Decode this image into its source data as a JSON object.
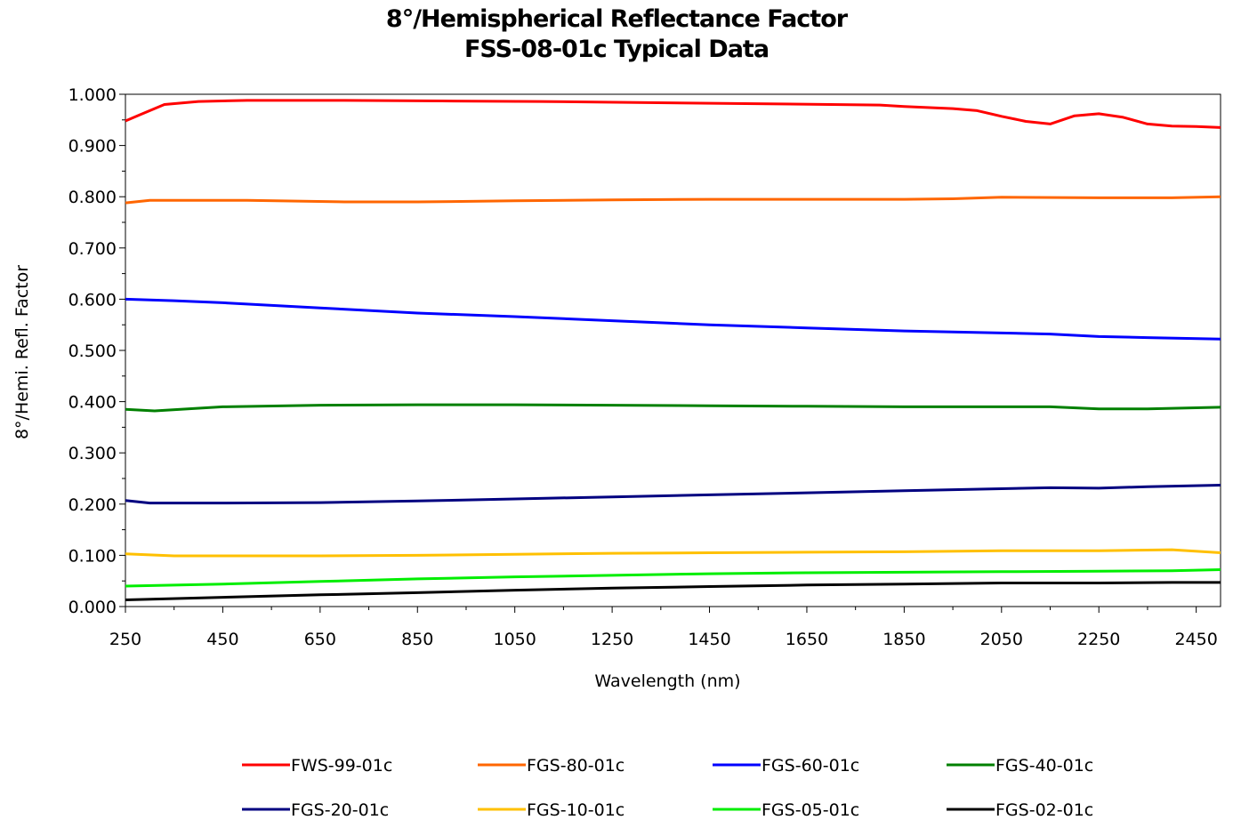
{
  "chart_data": {
    "type": "line",
    "title": "8°/Hemispherical Reflectance Factor",
    "subtitle": "FSS-08-01c Typical Data",
    "xlabel": "Wavelength  (nm)",
    "ylabel": "8°/Hemi. Refl. Factor",
    "xlim": [
      250,
      2500
    ],
    "ylim": [
      0,
      1
    ],
    "x_ticks": [
      "250",
      "450",
      "650",
      "850",
      "1050",
      "1250",
      "1450",
      "1650",
      "1850",
      "2050",
      "2250",
      "2450"
    ],
    "y_ticks": [
      "0.000",
      "0.100",
      "0.200",
      "0.300",
      "0.400",
      "0.500",
      "0.600",
      "0.700",
      "0.800",
      "0.900",
      "1.000"
    ],
    "grid": false,
    "legend_position": "bottom",
    "series": [
      {
        "name": "FWS-99-01c",
        "color": "#ff0000",
        "points": [
          [
            250,
            0.948
          ],
          [
            280,
            0.96
          ],
          [
            330,
            0.98
          ],
          [
            400,
            0.986
          ],
          [
            500,
            0.988
          ],
          [
            700,
            0.988
          ],
          [
            900,
            0.987
          ],
          [
            1100,
            0.986
          ],
          [
            1300,
            0.984
          ],
          [
            1500,
            0.982
          ],
          [
            1700,
            0.98
          ],
          [
            1800,
            0.979
          ],
          [
            1850,
            0.976
          ],
          [
            1950,
            0.972
          ],
          [
            2000,
            0.968
          ],
          [
            2050,
            0.957
          ],
          [
            2100,
            0.947
          ],
          [
            2150,
            0.942
          ],
          [
            2200,
            0.958
          ],
          [
            2250,
            0.962
          ],
          [
            2300,
            0.955
          ],
          [
            2350,
            0.942
          ],
          [
            2400,
            0.938
          ],
          [
            2450,
            0.937
          ],
          [
            2500,
            0.935
          ]
        ]
      },
      {
        "name": "FGS-80-01c",
        "color": "#ff6600",
        "points": [
          [
            250,
            0.788
          ],
          [
            300,
            0.793
          ],
          [
            500,
            0.793
          ],
          [
            700,
            0.79
          ],
          [
            850,
            0.79
          ],
          [
            1050,
            0.792
          ],
          [
            1250,
            0.794
          ],
          [
            1450,
            0.795
          ],
          [
            1650,
            0.795
          ],
          [
            1850,
            0.795
          ],
          [
            1950,
            0.796
          ],
          [
            2050,
            0.799
          ],
          [
            2250,
            0.798
          ],
          [
            2400,
            0.798
          ],
          [
            2500,
            0.8
          ]
        ]
      },
      {
        "name": "FGS-60-01c",
        "color": "#0000ff",
        "points": [
          [
            250,
            0.6
          ],
          [
            350,
            0.597
          ],
          [
            450,
            0.593
          ],
          [
            650,
            0.583
          ],
          [
            850,
            0.573
          ],
          [
            1050,
            0.566
          ],
          [
            1250,
            0.558
          ],
          [
            1450,
            0.55
          ],
          [
            1650,
            0.544
          ],
          [
            1850,
            0.538
          ],
          [
            2050,
            0.534
          ],
          [
            2150,
            0.532
          ],
          [
            2250,
            0.527
          ],
          [
            2350,
            0.525
          ],
          [
            2500,
            0.522
          ]
        ]
      },
      {
        "name": "FGS-40-01c",
        "color": "#008000",
        "points": [
          [
            250,
            0.385
          ],
          [
            310,
            0.382
          ],
          [
            450,
            0.39
          ],
          [
            650,
            0.393
          ],
          [
            850,
            0.394
          ],
          [
            1050,
            0.394
          ],
          [
            1250,
            0.393
          ],
          [
            1450,
            0.392
          ],
          [
            1650,
            0.391
          ],
          [
            1850,
            0.39
          ],
          [
            2050,
            0.39
          ],
          [
            2150,
            0.39
          ],
          [
            2250,
            0.386
          ],
          [
            2350,
            0.386
          ],
          [
            2500,
            0.389
          ]
        ]
      },
      {
        "name": "FGS-20-01c",
        "color": "#000080",
        "points": [
          [
            250,
            0.207
          ],
          [
            300,
            0.202
          ],
          [
            450,
            0.202
          ],
          [
            650,
            0.203
          ],
          [
            850,
            0.206
          ],
          [
            1050,
            0.21
          ],
          [
            1250,
            0.214
          ],
          [
            1450,
            0.218
          ],
          [
            1650,
            0.222
          ],
          [
            1850,
            0.226
          ],
          [
            2050,
            0.23
          ],
          [
            2150,
            0.232
          ],
          [
            2250,
            0.231
          ],
          [
            2350,
            0.234
          ],
          [
            2500,
            0.237
          ]
        ]
      },
      {
        "name": "FGS-10-01c",
        "color": "#ffc000",
        "points": [
          [
            250,
            0.103
          ],
          [
            350,
            0.099
          ],
          [
            650,
            0.099
          ],
          [
            850,
            0.1
          ],
          [
            1050,
            0.102
          ],
          [
            1250,
            0.104
          ],
          [
            1450,
            0.105
          ],
          [
            1650,
            0.106
          ],
          [
            1850,
            0.107
          ],
          [
            2050,
            0.109
          ],
          [
            2250,
            0.109
          ],
          [
            2400,
            0.111
          ],
          [
            2500,
            0.105
          ]
        ]
      },
      {
        "name": "FGS-05-01c",
        "color": "#00ee00",
        "points": [
          [
            250,
            0.04
          ],
          [
            450,
            0.044
          ],
          [
            650,
            0.049
          ],
          [
            850,
            0.054
          ],
          [
            1050,
            0.058
          ],
          [
            1250,
            0.061
          ],
          [
            1450,
            0.064
          ],
          [
            1650,
            0.066
          ],
          [
            1850,
            0.067
          ],
          [
            2050,
            0.068
          ],
          [
            2250,
            0.069
          ],
          [
            2400,
            0.07
          ],
          [
            2500,
            0.072
          ]
        ]
      },
      {
        "name": "FGS-02-01c",
        "color": "#000000",
        "points": [
          [
            250,
            0.013
          ],
          [
            450,
            0.018
          ],
          [
            650,
            0.023
          ],
          [
            850,
            0.027
          ],
          [
            1050,
            0.032
          ],
          [
            1250,
            0.036
          ],
          [
            1450,
            0.039
          ],
          [
            1650,
            0.042
          ],
          [
            1850,
            0.044
          ],
          [
            2050,
            0.046
          ],
          [
            2250,
            0.046
          ],
          [
            2400,
            0.047
          ],
          [
            2500,
            0.047
          ]
        ]
      }
    ]
  }
}
